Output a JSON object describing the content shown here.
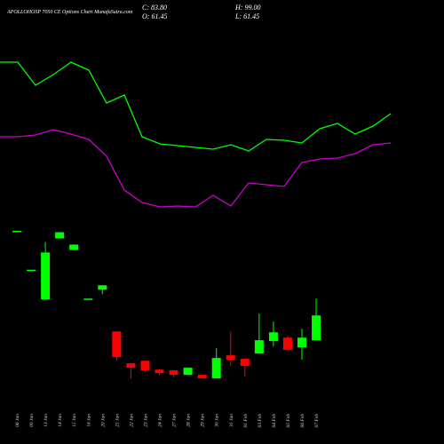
{
  "chart_data": [
    {
      "type": "line",
      "title": "APOLLOHOSP 7050 CE Options  Chart MunafaSutra.com",
      "annotations": [
        "C: 83.80",
        "O: 61.45",
        "H: 99.00",
        "L: 61.45"
      ],
      "categories": [
        null,
        null,
        null,
        null,
        null,
        null,
        null,
        null,
        null,
        null,
        null,
        null,
        null,
        null,
        null,
        null,
        null,
        null,
        null,
        null,
        null,
        null,
        null
      ],
      "ylim": [
        0,
        280
      ],
      "series": [
        {
          "color": "#00ff00",
          "values": [
            210,
            210,
            184,
            196,
            210,
            201,
            164,
            173,
            126,
            118,
            116,
            114,
            112,
            117,
            110,
            123,
            122,
            119,
            135,
            141,
            129,
            138,
            152
          ]
        },
        {
          "color": "#cc00cc",
          "values": [
            126,
            126,
            128,
            134,
            129,
            123,
            104,
            66,
            52,
            47,
            48,
            47,
            60,
            48,
            74,
            72,
            70,
            97,
            101,
            102,
            107,
            117,
            119
          ]
        }
      ]
    },
    {
      "type": "candlestick",
      "categories": [
        "06 Jan",
        "09 Jan",
        "13 Jan",
        "14 Jan",
        "15 Jan",
        "16 Jan",
        "20 Jan",
        "21 Jan",
        "22 Jan",
        "23 Jan",
        "24 Jan",
        "27 Jan",
        "28 Jan",
        "29 Jan",
        "30 Jan",
        "31 Jan",
        "01 Feb",
        "03 Feb",
        "04 Feb",
        "05 Feb",
        "06 Feb",
        "07 Feb"
      ],
      "ylim": [
        0,
        168
      ],
      "up_color": "#00ff00",
      "down_color": "#ff0000",
      "open": [
        160,
        125,
        98.2,
        153.2,
        142.8,
        99,
        107,
        69.4,
        40.7,
        43,
        35,
        34.3,
        30.3,
        30.3,
        27.1,
        47.9,
        44.7,
        49.5,
        60.7,
        63.8,
        55.1,
        61.45
      ],
      "close": [
        160,
        125,
        140.5,
        158.8,
        147.6,
        99,
        111,
        46.3,
        36.7,
        34.3,
        31.9,
        30.3,
        36.7,
        27.1,
        45.5,
        43.9,
        38.3,
        61.5,
        68.6,
        52.7,
        63.8,
        83.8
      ],
      "high": [
        160,
        125,
        150,
        159,
        148,
        99,
        111,
        69.4,
        41,
        43,
        35,
        34.3,
        36.7,
        30.3,
        54.3,
        69.4,
        44.7,
        85.4,
        78.2,
        65.4,
        71.8,
        99
      ],
      "low": [
        160,
        125,
        98,
        153,
        142.8,
        99,
        103,
        43,
        27,
        32.7,
        30,
        28,
        30.3,
        27.1,
        27.1,
        38.3,
        28.7,
        49.5,
        55.9,
        52.7,
        43.9,
        61.45
      ]
    }
  ]
}
